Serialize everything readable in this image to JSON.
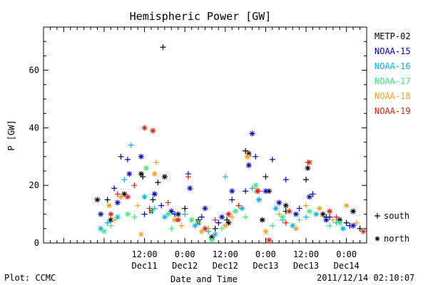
{
  "chart_data": {
    "type": "scatter",
    "title": "Hemispheric Power [GW]",
    "xlabel": "Date and Time",
    "ylabel": "P [GW]",
    "ylim": [
      0,
      75
    ],
    "yticks": [
      0,
      20,
      40,
      60
    ],
    "xlim": [
      "2011-12-10 06:00",
      "2011-12-14 06:00"
    ],
    "xticks": [
      {
        "x": "2011-12-11 12:00",
        "time": "12:00",
        "date": "Dec11"
      },
      {
        "x": "2011-12-12 00:00",
        "time": "0:00",
        "date": "Dec12"
      },
      {
        "x": "2011-12-12 12:00",
        "time": "12:00",
        "date": "Dec12"
      },
      {
        "x": "2011-12-13 00:00",
        "time": "0:00",
        "date": "Dec13"
      },
      {
        "x": "2011-12-13 12:00",
        "time": "12:00",
        "date": "Dec13"
      },
      {
        "x": "2011-12-14 00:00",
        "time": "0:00",
        "date": "Dec14"
      }
    ],
    "grid": false,
    "legend_position": "right",
    "marker_legend": [
      {
        "symbol": "+",
        "label": "south"
      },
      {
        "symbol": "*",
        "label": "north"
      }
    ],
    "series": [
      {
        "name": "METP-02",
        "color": "#000000",
        "south": [
          [
            "2011-12-11 01:00",
            15
          ],
          [
            "2011-12-11 05:00",
            30
          ],
          [
            "2011-12-11 11:30",
            23
          ],
          [
            "2011-12-11 14:30",
            15
          ],
          [
            "2011-12-11 16:00",
            21
          ],
          [
            "2011-12-11 17:30",
            68
          ],
          [
            "2011-12-12 00:00",
            12
          ],
          [
            "2011-12-12 04:00",
            8
          ],
          [
            "2011-12-12 09:00",
            5
          ],
          [
            "2011-12-12 12:30",
            8
          ],
          [
            "2011-12-12 18:00",
            32
          ],
          [
            "2011-12-12 22:00",
            15
          ],
          [
            "2011-12-13 00:00",
            23
          ],
          [
            "2011-12-13 06:00",
            11
          ],
          [
            "2011-12-13 12:00",
            22
          ],
          [
            "2011-12-13 18:00",
            9
          ],
          [
            "2011-12-14 00:00",
            7
          ],
          [
            "2011-12-14 04:00",
            5
          ]
        ],
        "north": [
          [
            "2011-12-10 22:00",
            15
          ],
          [
            "2011-12-11 02:00",
            8
          ],
          [
            "2011-12-11 06:00",
            17
          ],
          [
            "2011-12-11 11:00",
            24
          ],
          [
            "2011-12-11 14:00",
            11
          ],
          [
            "2011-12-11 18:00",
            23
          ],
          [
            "2011-12-11 22:00",
            10
          ],
          [
            "2011-12-12 04:00",
            7
          ],
          [
            "2011-12-12 08:00",
            2
          ],
          [
            "2011-12-12 13:00",
            7
          ],
          [
            "2011-12-12 19:00",
            31
          ],
          [
            "2011-12-12 23:00",
            8
          ],
          [
            "2011-12-13 01:00",
            18
          ],
          [
            "2011-12-13 06:00",
            13
          ],
          [
            "2011-12-13 12:30",
            26
          ],
          [
            "2011-12-13 17:00",
            10
          ],
          [
            "2011-12-13 22:00",
            8
          ],
          [
            "2011-12-14 02:00",
            11
          ]
        ]
      },
      {
        "name": "NOAA-15",
        "color": "#0000cc",
        "south": [
          [
            "2011-12-11 03:00",
            19
          ],
          [
            "2011-12-11 07:00",
            29
          ],
          [
            "2011-12-11 12:00",
            10
          ],
          [
            "2011-12-11 17:00",
            13
          ],
          [
            "2011-12-11 21:00",
            10
          ],
          [
            "2011-12-12 01:00",
            24
          ],
          [
            "2011-12-12 05:00",
            9
          ],
          [
            "2011-12-12 10:00",
            7
          ],
          [
            "2011-12-12 14:00",
            15
          ],
          [
            "2011-12-12 18:00",
            18
          ],
          [
            "2011-12-12 21:00",
            30
          ],
          [
            "2011-12-13 02:00",
            29
          ],
          [
            "2011-12-13 06:00",
            22
          ],
          [
            "2011-12-13 10:00",
            12
          ],
          [
            "2011-12-13 14:00",
            17
          ],
          [
            "2011-12-13 19:00",
            9
          ],
          [
            "2011-12-14 01:00",
            6
          ]
        ],
        "north": [
          [
            "2011-12-10 23:00",
            10
          ],
          [
            "2011-12-11 04:00",
            14
          ],
          [
            "2011-12-11 07:30",
            24
          ],
          [
            "2011-12-11 11:00",
            30
          ],
          [
            "2011-12-11 15:00",
            17
          ],
          [
            "2011-12-11 20:00",
            11
          ],
          [
            "2011-12-12 01:30",
            19
          ],
          [
            "2011-12-12 06:00",
            12
          ],
          [
            "2011-12-12 11:00",
            9
          ],
          [
            "2011-12-12 14:00",
            18
          ],
          [
            "2011-12-12 19:00",
            27
          ],
          [
            "2011-12-12 20:00",
            38
          ],
          [
            "2011-12-13 00:00",
            18
          ],
          [
            "2011-12-13 04:00",
            14
          ],
          [
            "2011-12-13 09:00",
            10
          ],
          [
            "2011-12-13 13:00",
            16
          ],
          [
            "2011-12-13 18:00",
            8
          ],
          [
            "2011-12-14 02:00",
            6
          ]
        ]
      },
      {
        "name": "NOAA-16",
        "color": "#00b4f0",
        "south": [
          [
            "2011-12-11 01:00",
            7
          ],
          [
            "2011-12-11 06:00",
            22
          ],
          [
            "2011-12-11 08:00",
            34
          ],
          [
            "2011-12-11 15:00",
            12
          ],
          [
            "2011-12-12 00:00",
            10
          ],
          [
            "2011-12-12 07:00",
            4
          ],
          [
            "2011-12-12 12:00",
            23
          ],
          [
            "2011-12-12 20:00",
            19
          ],
          [
            "2011-12-13 05:00",
            8
          ],
          [
            "2011-12-13 12:00",
            9
          ],
          [
            "2011-12-13 21:00",
            7
          ]
        ],
        "north": [
          [
            "2011-12-10 23:00",
            5
          ],
          [
            "2011-12-11 04:00",
            9
          ],
          [
            "2011-12-11 12:00",
            16
          ],
          [
            "2011-12-11 18:00",
            9
          ],
          [
            "2011-12-12 03:00",
            6
          ],
          [
            "2011-12-12 09:00",
            3
          ],
          [
            "2011-12-12 17:00",
            12
          ],
          [
            "2011-12-12 22:00",
            15
          ],
          [
            "2011-12-13 03:00",
            12
          ],
          [
            "2011-12-13 08:00",
            6
          ],
          [
            "2011-12-13 15:00",
            10
          ],
          [
            "2011-12-13 23:00",
            5
          ]
        ]
      },
      {
        "name": "NOAA-17",
        "color": "#33ee77",
        "south": [
          [
            "2011-12-11 02:00",
            6
          ],
          [
            "2011-12-11 09:00",
            9
          ],
          [
            "2011-12-11 14:00",
            11
          ],
          [
            "2011-12-11 20:00",
            5
          ],
          [
            "2011-12-12 04:00",
            7
          ],
          [
            "2011-12-12 11:00",
            5
          ],
          [
            "2011-12-12 18:00",
            9
          ],
          [
            "2011-12-13 02:00",
            6
          ],
          [
            "2011-12-13 10:00",
            8
          ],
          [
            "2011-12-13 19:00",
            6
          ]
        ],
        "north": [
          [
            "2011-12-11 00:00",
            4
          ],
          [
            "2011-12-11 07:00",
            10
          ],
          [
            "2011-12-11 12:30",
            26
          ],
          [
            "2011-12-11 19:00",
            10
          ],
          [
            "2011-12-12 02:00",
            8
          ],
          [
            "2011-12-12 08:00",
            1
          ],
          [
            "2011-12-12 15:00",
            11
          ],
          [
            "2011-12-12 21:00",
            20
          ],
          [
            "2011-12-13 05:00",
            9
          ],
          [
            "2011-12-13 13:00",
            11
          ],
          [
            "2011-12-13 22:00",
            7
          ]
        ]
      },
      {
        "name": "NOAA-18",
        "color": "#f0a020",
        "south": [
          [
            "2011-12-11 03:00",
            8
          ],
          [
            "2011-12-11 10:00",
            13
          ],
          [
            "2011-12-11 15:30",
            28
          ],
          [
            "2011-12-11 23:00",
            6
          ],
          [
            "2011-12-12 07:00",
            5
          ],
          [
            "2011-12-12 14:00",
            9
          ],
          [
            "2011-12-12 19:00",
            30
          ],
          [
            "2011-12-13 04:00",
            10
          ],
          [
            "2011-12-13 12:00",
            13
          ],
          [
            "2011-12-13 20:00",
            8
          ],
          [
            "2011-12-14 03:00",
            7
          ]
        ],
        "north": [
          [
            "2011-12-11 01:30",
            13
          ],
          [
            "2011-12-11 05:00",
            16
          ],
          [
            "2011-12-11 11:00",
            3
          ],
          [
            "2011-12-11 15:00",
            24
          ],
          [
            "2011-12-11 21:00",
            8
          ],
          [
            "2011-12-12 05:00",
            4
          ],
          [
            "2011-12-12 12:00",
            6
          ],
          [
            "2011-12-12 18:30",
            30
          ],
          [
            "2011-12-13 00:00",
            4
          ],
          [
            "2011-12-13 09:00",
            5
          ],
          [
            "2011-12-13 16:00",
            12
          ],
          [
            "2011-12-14 00:00",
            13
          ]
        ]
      },
      {
        "name": "NOAA-19",
        "color": "#e02010",
        "south": [
          [
            "2011-12-11 04:00",
            17
          ],
          [
            "2011-12-11 09:00",
            20
          ],
          [
            "2011-12-11 13:30",
            12
          ],
          [
            "2011-12-11 19:00",
            14
          ],
          [
            "2011-12-12 01:00",
            23
          ],
          [
            "2011-12-12 09:00",
            8
          ],
          [
            "2011-12-12 16:00",
            13
          ],
          [
            "2011-12-12 22:00",
            18
          ],
          [
            "2011-12-13 06:00",
            7
          ],
          [
            "2011-12-13 12:30",
            28
          ],
          [
            "2011-12-13 21:00",
            9
          ]
        ],
        "north": [
          [
            "2011-12-11 02:00",
            10
          ],
          [
            "2011-12-11 07:00",
            16
          ],
          [
            "2011-12-11 12:00",
            40
          ],
          [
            "2011-12-11 14:30",
            39
          ],
          [
            "2011-12-11 22:00",
            8
          ],
          [
            "2011-12-12 06:00",
            5
          ],
          [
            "2011-12-12 13:00",
            10
          ],
          [
            "2011-12-12 21:30",
            18
          ],
          [
            "2011-12-13 01:00",
            1
          ],
          [
            "2011-12-13 07:00",
            11
          ],
          [
            "2011-12-13 13:00",
            28
          ],
          [
            "2011-12-13 19:00",
            11
          ],
          [
            "2011-12-14 05:00",
            4
          ]
        ]
      }
    ]
  },
  "footer": {
    "left": "Plot: CCMC",
    "right": "2011/12/14 02:10:07"
  }
}
